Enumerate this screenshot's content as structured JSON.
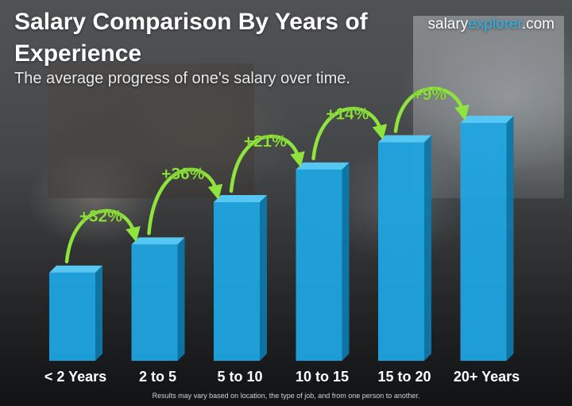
{
  "header": {
    "title": "Salary Comparison By Years of Experience",
    "subtitle": "The average progress of one's salary over time.",
    "brand_prefix": "salary",
    "brand_highlight": "explorer",
    "brand_suffix": ".com"
  },
  "footnote": "Results may vary based on location, the type of job, and from one person to another.",
  "colors": {
    "bar_front": "#1ea7e4",
    "bar_side": "#0d78aa",
    "bar_top": "#56c6f2",
    "arrow": "#8fe33d",
    "brand_accent": "#2ab3ea"
  },
  "chart_data": {
    "type": "bar",
    "title": "Salary Comparison By Years of Experience",
    "subtitle": "The average progress of one's salary over time.",
    "categories": [
      "< 2 Years",
      "2 to 5",
      "5 to 10",
      "10 to 15",
      "15 to 20",
      "20+ Years"
    ],
    "values": [
      100,
      132,
      180,
      217,
      248,
      270
    ],
    "increase_labels": [
      "+32%",
      "+36%",
      "+21%",
      "+14%",
      "+9%"
    ],
    "grid": false,
    "legend": "none"
  }
}
